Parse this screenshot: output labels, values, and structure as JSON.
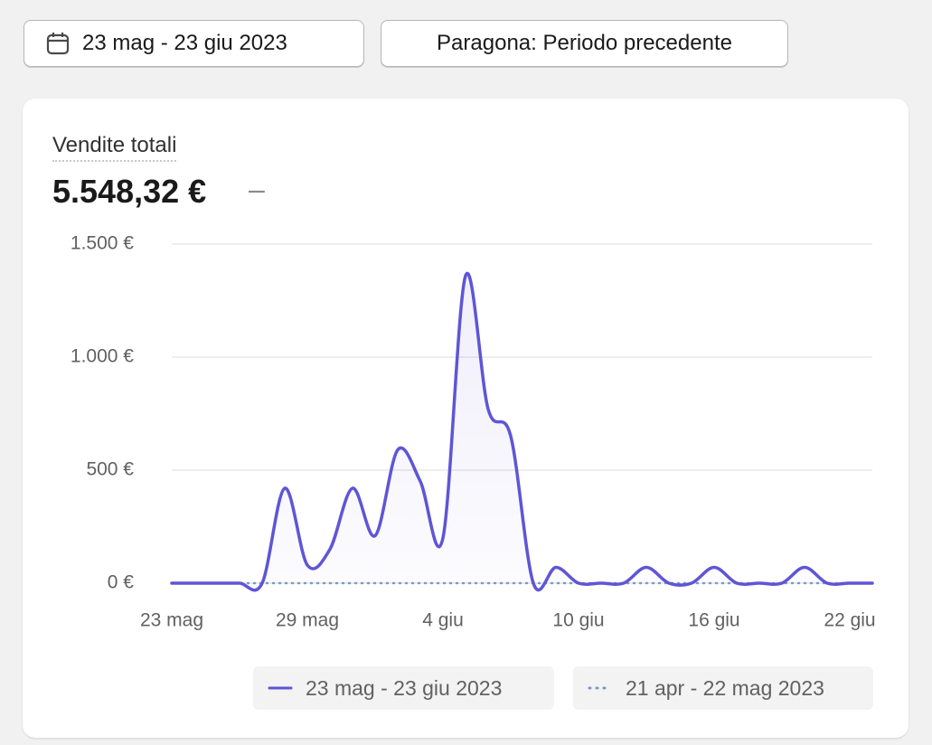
{
  "controls": {
    "date_range": "23 mag - 23 giu 2023",
    "compare": "Paragona: Periodo precedente"
  },
  "metric": {
    "label": "Vendite totali",
    "value": "5.548,32 €",
    "change": "–"
  },
  "chart_data": {
    "type": "line",
    "categories": [
      "23 mag",
      null,
      null,
      null,
      null,
      null,
      "29 mag",
      null,
      null,
      null,
      null,
      null,
      "4 giu",
      null,
      null,
      null,
      null,
      null,
      "10 giu",
      null,
      null,
      null,
      null,
      null,
      "16 giu",
      null,
      null,
      null,
      null,
      null,
      "22 giu",
      null
    ],
    "series": [
      {
        "name": "23 mag - 23 giu 2023",
        "color": "#5f55d6",
        "style": "solid",
        "values": [
          0,
          0,
          0,
          0,
          0,
          420,
          80,
          150,
          420,
          210,
          590,
          450,
          200,
          1360,
          770,
          650,
          0,
          70,
          0,
          0,
          0,
          70,
          0,
          0,
          70,
          0,
          0,
          0,
          70,
          0,
          0,
          0
        ]
      },
      {
        "name": "21 apr - 22 mag 2023",
        "color": "#7a9cc6",
        "style": "dotted",
        "values": [
          0,
          0,
          0,
          0,
          0,
          0,
          0,
          0,
          0,
          0,
          0,
          0,
          0,
          0,
          0,
          0,
          0,
          0,
          0,
          0,
          0,
          0,
          0,
          0,
          0,
          0,
          0,
          0,
          0,
          0,
          0,
          0
        ]
      }
    ],
    "ylim": [
      0,
      1500
    ],
    "yticks": [
      {
        "value": 0,
        "label": "0 €"
      },
      {
        "value": 500,
        "label": "500 €"
      },
      {
        "value": 1000,
        "label": "1.000 €"
      },
      {
        "value": 1500,
        "label": "1.500 €"
      }
    ],
    "grid": true
  }
}
